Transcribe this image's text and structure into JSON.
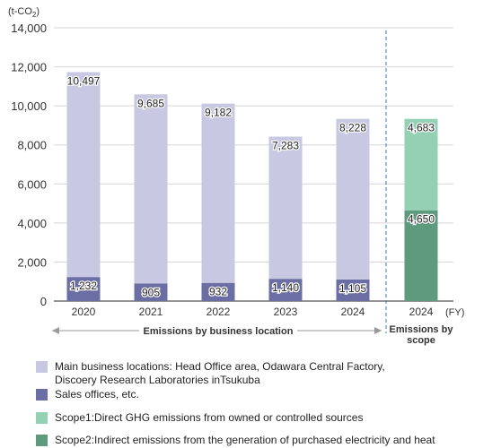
{
  "chart_data": {
    "type": "bar",
    "stacked": true,
    "unit_label": "(t-CO",
    "unit_sub": "2",
    "unit_close": ")",
    "x_unit": "(FY)",
    "ylim": [
      0,
      14000
    ],
    "yticks": [
      "0",
      "2,000",
      "4,000",
      "6,000",
      "8,000",
      "10,000",
      "12,000",
      "14,000"
    ],
    "ytick_values": [
      0,
      2000,
      4000,
      6000,
      8000,
      10000,
      12000,
      14000
    ],
    "grid": true,
    "groups": [
      {
        "label": "Emissions by business location",
        "categories": [
          "2020",
          "2021",
          "2022",
          "2023",
          "2024"
        ],
        "series": [
          {
            "name": "Sales offices, etc.",
            "color": "#6b6ea3",
            "values": [
              1232,
              905,
              932,
              1140,
              1105
            ],
            "labels": [
              "1,232",
              "905",
              "932",
              "1,140",
              "1,105"
            ]
          },
          {
            "name": "Main business locations: Head Office area, Odawara Central Factory, Discoery Research Laboratories inTsukuba",
            "color": "#c8c8e2",
            "values": [
              10497,
              9685,
              9182,
              7283,
              8228
            ],
            "labels": [
              "10,497",
              "9,685",
              "9,182",
              "7,283",
              "8,228"
            ]
          }
        ]
      },
      {
        "label": "Emissions by scope",
        "label_lines": [
          "Emissions by",
          "scope"
        ],
        "categories": [
          "2024"
        ],
        "series": [
          {
            "name": "Scope2:Indirect emissions from the generation of purchased electricity and heat",
            "color": "#5e9b7e",
            "values": [
              4650
            ],
            "labels": [
              "4,650"
            ]
          },
          {
            "name": "Scope1:Direct GHG emissions from owned or controlled sources",
            "color": "#93d0b4",
            "values": [
              4683
            ],
            "labels": [
              "4,683"
            ]
          }
        ]
      }
    ]
  },
  "legend": [
    {
      "text": "Main business locations: Head Office area, Odawara Central Factory,\nDiscoery Research Laboratories inTsukuba",
      "color": "#c8c8e2"
    },
    {
      "text": "Sales offices, etc.",
      "color": "#6b6ea3"
    },
    {
      "text": "Scope1:Direct GHG emissions from owned or controlled sources",
      "color": "#93d0b4"
    },
    {
      "text": "Scope2:Indirect emissions from the generation of purchased electricity and heat",
      "color": "#5e9b7e"
    }
  ]
}
